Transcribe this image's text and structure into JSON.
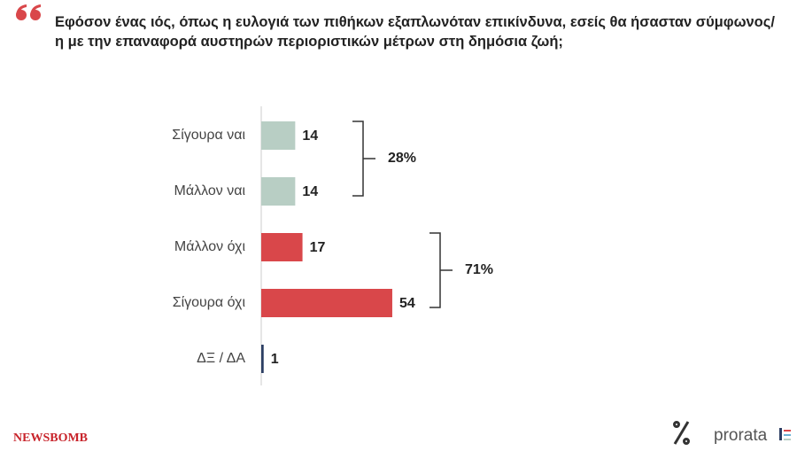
{
  "chart_data": {
    "type": "bar",
    "orientation": "horizontal",
    "title": "Εφόσον ένας ιός, όπως η ευλογιά των πιθήκων εξαπλωνόταν επικίνδυνα, εσείς θα ήσασταν σύμφωνος/η με την επαναφορά αυστηρών περιοριστικών μέτρων στη δημόσια ζωή;",
    "categories": [
      "Σίγουρα ναι",
      "Μάλλον ναι",
      "Μάλλον όχι",
      "Σίγουρα όχι",
      "ΔΞ / ΔΑ"
    ],
    "values": [
      14,
      14,
      17,
      54,
      1
    ],
    "colors": [
      "#b8cec4",
      "#b8cec4",
      "#d9474a",
      "#d9474a",
      "#2c3e63"
    ],
    "annotations": [
      "28%",
      "71%"
    ]
  },
  "brand": "NEWSBOMB",
  "source": "prorata"
}
